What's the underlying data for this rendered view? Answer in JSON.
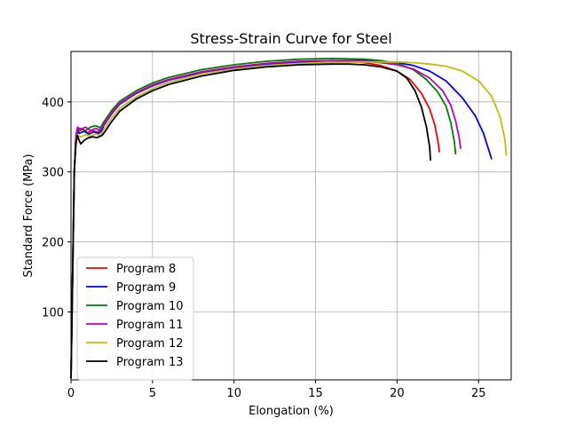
{
  "chart_data": {
    "type": "line",
    "title": "Stress-Strain Curve for Steel",
    "xlabel": "Elongation (%)",
    "ylabel": "Standard Force (MPa)",
    "xlim": [
      0,
      27
    ],
    "ylim": [
      3,
      472
    ],
    "xticks": [
      0,
      5,
      10,
      15,
      20,
      25
    ],
    "yticks": [
      100,
      200,
      300,
      400
    ],
    "grid": true,
    "legend_position": "lower-left",
    "series": [
      {
        "name": "Program 8",
        "color": "#ff0000",
        "points": [
          [
            0,
            5
          ],
          [
            0.1,
            150
          ],
          [
            0.2,
            300
          ],
          [
            0.3,
            350
          ],
          [
            0.4,
            362
          ],
          [
            0.5,
            358
          ],
          [
            0.7,
            361
          ],
          [
            1.0,
            356
          ],
          [
            1.3,
            359
          ],
          [
            1.6,
            357
          ],
          [
            1.9,
            361
          ],
          [
            2.0,
            368
          ],
          [
            2.5,
            385
          ],
          [
            3,
            398
          ],
          [
            4,
            413
          ],
          [
            5,
            424
          ],
          [
            6,
            432
          ],
          [
            8,
            443
          ],
          [
            10,
            450
          ],
          [
            12,
            455
          ],
          [
            14,
            458
          ],
          [
            16,
            459
          ],
          [
            17,
            458
          ],
          [
            18,
            456
          ],
          [
            19,
            452
          ],
          [
            20,
            444
          ],
          [
            20.8,
            432
          ],
          [
            21.5,
            412
          ],
          [
            22,
            390
          ],
          [
            22.3,
            368
          ],
          [
            22.5,
            345
          ],
          [
            22.6,
            328
          ]
        ]
      },
      {
        "name": "Program 9",
        "color": "#0000ff",
        "points": [
          [
            0,
            5
          ],
          [
            0.1,
            150
          ],
          [
            0.2,
            300
          ],
          [
            0.3,
            345
          ],
          [
            0.4,
            358
          ],
          [
            0.5,
            355
          ],
          [
            0.8,
            358
          ],
          [
            1.1,
            354
          ],
          [
            1.4,
            357
          ],
          [
            1.7,
            355
          ],
          [
            1.9,
            359
          ],
          [
            2.0,
            366
          ],
          [
            2.5,
            383
          ],
          [
            3,
            397
          ],
          [
            4,
            412
          ],
          [
            5,
            423
          ],
          [
            6,
            431
          ],
          [
            8,
            442
          ],
          [
            10,
            449
          ],
          [
            12,
            454
          ],
          [
            14,
            457
          ],
          [
            16,
            459
          ],
          [
            18,
            459
          ],
          [
            19,
            458
          ],
          [
            20,
            456
          ],
          [
            21,
            452
          ],
          [
            22,
            444
          ],
          [
            23,
            430
          ],
          [
            24,
            406
          ],
          [
            24.8,
            380
          ],
          [
            25.3,
            355
          ],
          [
            25.6,
            333
          ],
          [
            25.8,
            318
          ]
        ]
      },
      {
        "name": "Program 10",
        "color": "#008000",
        "points": [
          [
            0,
            5
          ],
          [
            0.1,
            150
          ],
          [
            0.2,
            300
          ],
          [
            0.3,
            350
          ],
          [
            0.4,
            360
          ],
          [
            0.6,
            362
          ],
          [
            0.9,
            359
          ],
          [
            1.2,
            364
          ],
          [
            1.5,
            366
          ],
          [
            1.8,
            363
          ],
          [
            2.0,
            371
          ],
          [
            2.5,
            388
          ],
          [
            3,
            401
          ],
          [
            4,
            416
          ],
          [
            5,
            427
          ],
          [
            6,
            435
          ],
          [
            8,
            446
          ],
          [
            10,
            453
          ],
          [
            12,
            458
          ],
          [
            14,
            461
          ],
          [
            16,
            462
          ],
          [
            18,
            461
          ],
          [
            19,
            459
          ],
          [
            20,
            455
          ],
          [
            21,
            446
          ],
          [
            21.8,
            432
          ],
          [
            22.5,
            414
          ],
          [
            23,
            394
          ],
          [
            23.3,
            370
          ],
          [
            23.5,
            345
          ],
          [
            23.6,
            325
          ]
        ]
      },
      {
        "name": "Program 11",
        "color": "#c000c0",
        "points": [
          [
            0,
            5
          ],
          [
            0.1,
            150
          ],
          [
            0.2,
            300
          ],
          [
            0.3,
            352
          ],
          [
            0.4,
            364
          ],
          [
            0.6,
            361
          ],
          [
            0.9,
            364
          ],
          [
            1.2,
            359
          ],
          [
            1.5,
            362
          ],
          [
            1.8,
            360
          ],
          [
            2.0,
            367
          ],
          [
            2.5,
            384
          ],
          [
            3,
            398
          ],
          [
            4,
            413
          ],
          [
            5,
            424
          ],
          [
            6,
            432
          ],
          [
            8,
            443
          ],
          [
            10,
            450
          ],
          [
            12,
            455
          ],
          [
            14,
            458
          ],
          [
            16,
            459
          ],
          [
            18,
            458
          ],
          [
            19,
            456
          ],
          [
            20,
            453
          ],
          [
            21,
            447
          ],
          [
            22,
            434
          ],
          [
            22.8,
            416
          ],
          [
            23.3,
            395
          ],
          [
            23.6,
            372
          ],
          [
            23.8,
            350
          ],
          [
            23.9,
            333
          ]
        ]
      },
      {
        "name": "Program 12",
        "color": "#c0c000",
        "points": [
          [
            0,
            5
          ],
          [
            0.1,
            150
          ],
          [
            0.2,
            300
          ],
          [
            0.3,
            340
          ],
          [
            0.4,
            352
          ],
          [
            0.6,
            350
          ],
          [
            0.9,
            353
          ],
          [
            1.2,
            351
          ],
          [
            1.5,
            354
          ],
          [
            1.8,
            352
          ],
          [
            2.0,
            360
          ],
          [
            2.5,
            377
          ],
          [
            3,
            391
          ],
          [
            4,
            407
          ],
          [
            5,
            419
          ],
          [
            6,
            428
          ],
          [
            8,
            440
          ],
          [
            10,
            447
          ],
          [
            12,
            452
          ],
          [
            14,
            455
          ],
          [
            16,
            456
          ],
          [
            18,
            457
          ],
          [
            20,
            457
          ],
          [
            21,
            456
          ],
          [
            22,
            454
          ],
          [
            23,
            451
          ],
          [
            24,
            444
          ],
          [
            25,
            430
          ],
          [
            25.8,
            408
          ],
          [
            26.3,
            380
          ],
          [
            26.6,
            348
          ],
          [
            26.7,
            323
          ]
        ]
      },
      {
        "name": "Program 13",
        "color": "#000000",
        "points": [
          [
            0,
            5
          ],
          [
            0.1,
            150
          ],
          [
            0.2,
            300
          ],
          [
            0.3,
            340
          ],
          [
            0.4,
            352
          ],
          [
            0.5,
            345
          ],
          [
            0.6,
            340
          ],
          [
            0.8,
            345
          ],
          [
            1.0,
            348
          ],
          [
            1.3,
            350
          ],
          [
            1.6,
            349
          ],
          [
            1.9,
            352
          ],
          [
            2.1,
            358
          ],
          [
            2.5,
            372
          ],
          [
            3,
            387
          ],
          [
            4,
            404
          ],
          [
            5,
            416
          ],
          [
            6,
            425
          ],
          [
            8,
            437
          ],
          [
            10,
            445
          ],
          [
            12,
            450
          ],
          [
            14,
            453
          ],
          [
            16,
            454
          ],
          [
            17,
            454
          ],
          [
            18,
            453
          ],
          [
            19,
            450
          ],
          [
            20,
            444
          ],
          [
            20.6,
            434
          ],
          [
            21.1,
            416
          ],
          [
            21.5,
            392
          ],
          [
            21.8,
            364
          ],
          [
            22.0,
            336
          ],
          [
            22.05,
            316
          ]
        ]
      }
    ]
  }
}
